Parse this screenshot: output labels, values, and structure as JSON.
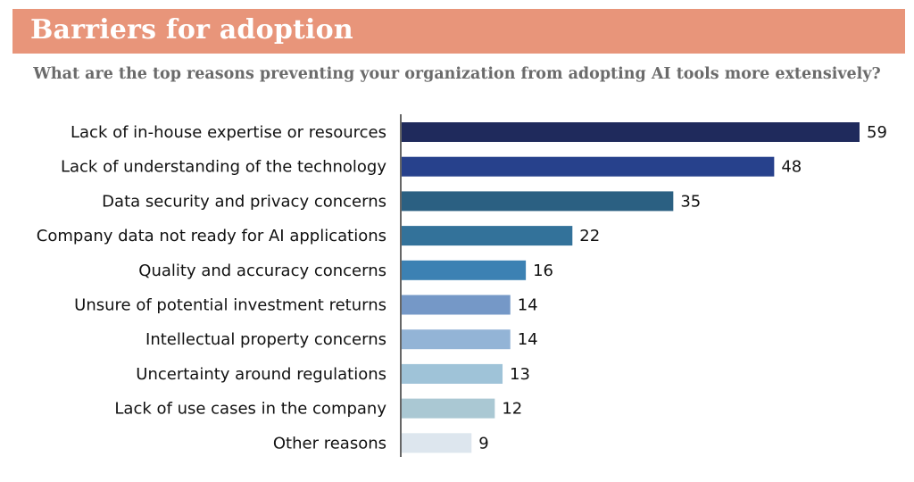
{
  "header": {
    "title": "Barriers for adoption",
    "subtitle": "What are the top reasons preventing your organization from adopting AI tools more extensively?"
  },
  "colors": {
    "banner": "#e8957a",
    "bars": [
      "#1f2a5c",
      "#27418c",
      "#2b6082",
      "#33729a",
      "#3c81b3",
      "#7598c7",
      "#93b4d6",
      "#9fc3d8",
      "#aac8d3",
      "#dde6ee"
    ]
  },
  "chart_data": {
    "type": "bar",
    "orientation": "horizontal",
    "title": "Barriers for adoption",
    "subtitle": "What are the top reasons preventing your organization from adopting AI tools more extensively?",
    "xlabel": "",
    "ylabel": "",
    "xlim": [
      0,
      59
    ],
    "grid": false,
    "categories": [
      "Lack of in-house expertise or resources",
      "Lack of understanding of the technology",
      "Data security and privacy concerns",
      "Company data not ready for AI applications",
      "Quality and accuracy concerns",
      "Unsure of potential investment returns",
      "Intellectual property concerns",
      "Uncertainty around regulations",
      "Lack of use cases in the company",
      "Other reasons"
    ],
    "values": [
      59,
      48,
      35,
      22,
      16,
      14,
      14,
      13,
      12,
      9
    ]
  }
}
